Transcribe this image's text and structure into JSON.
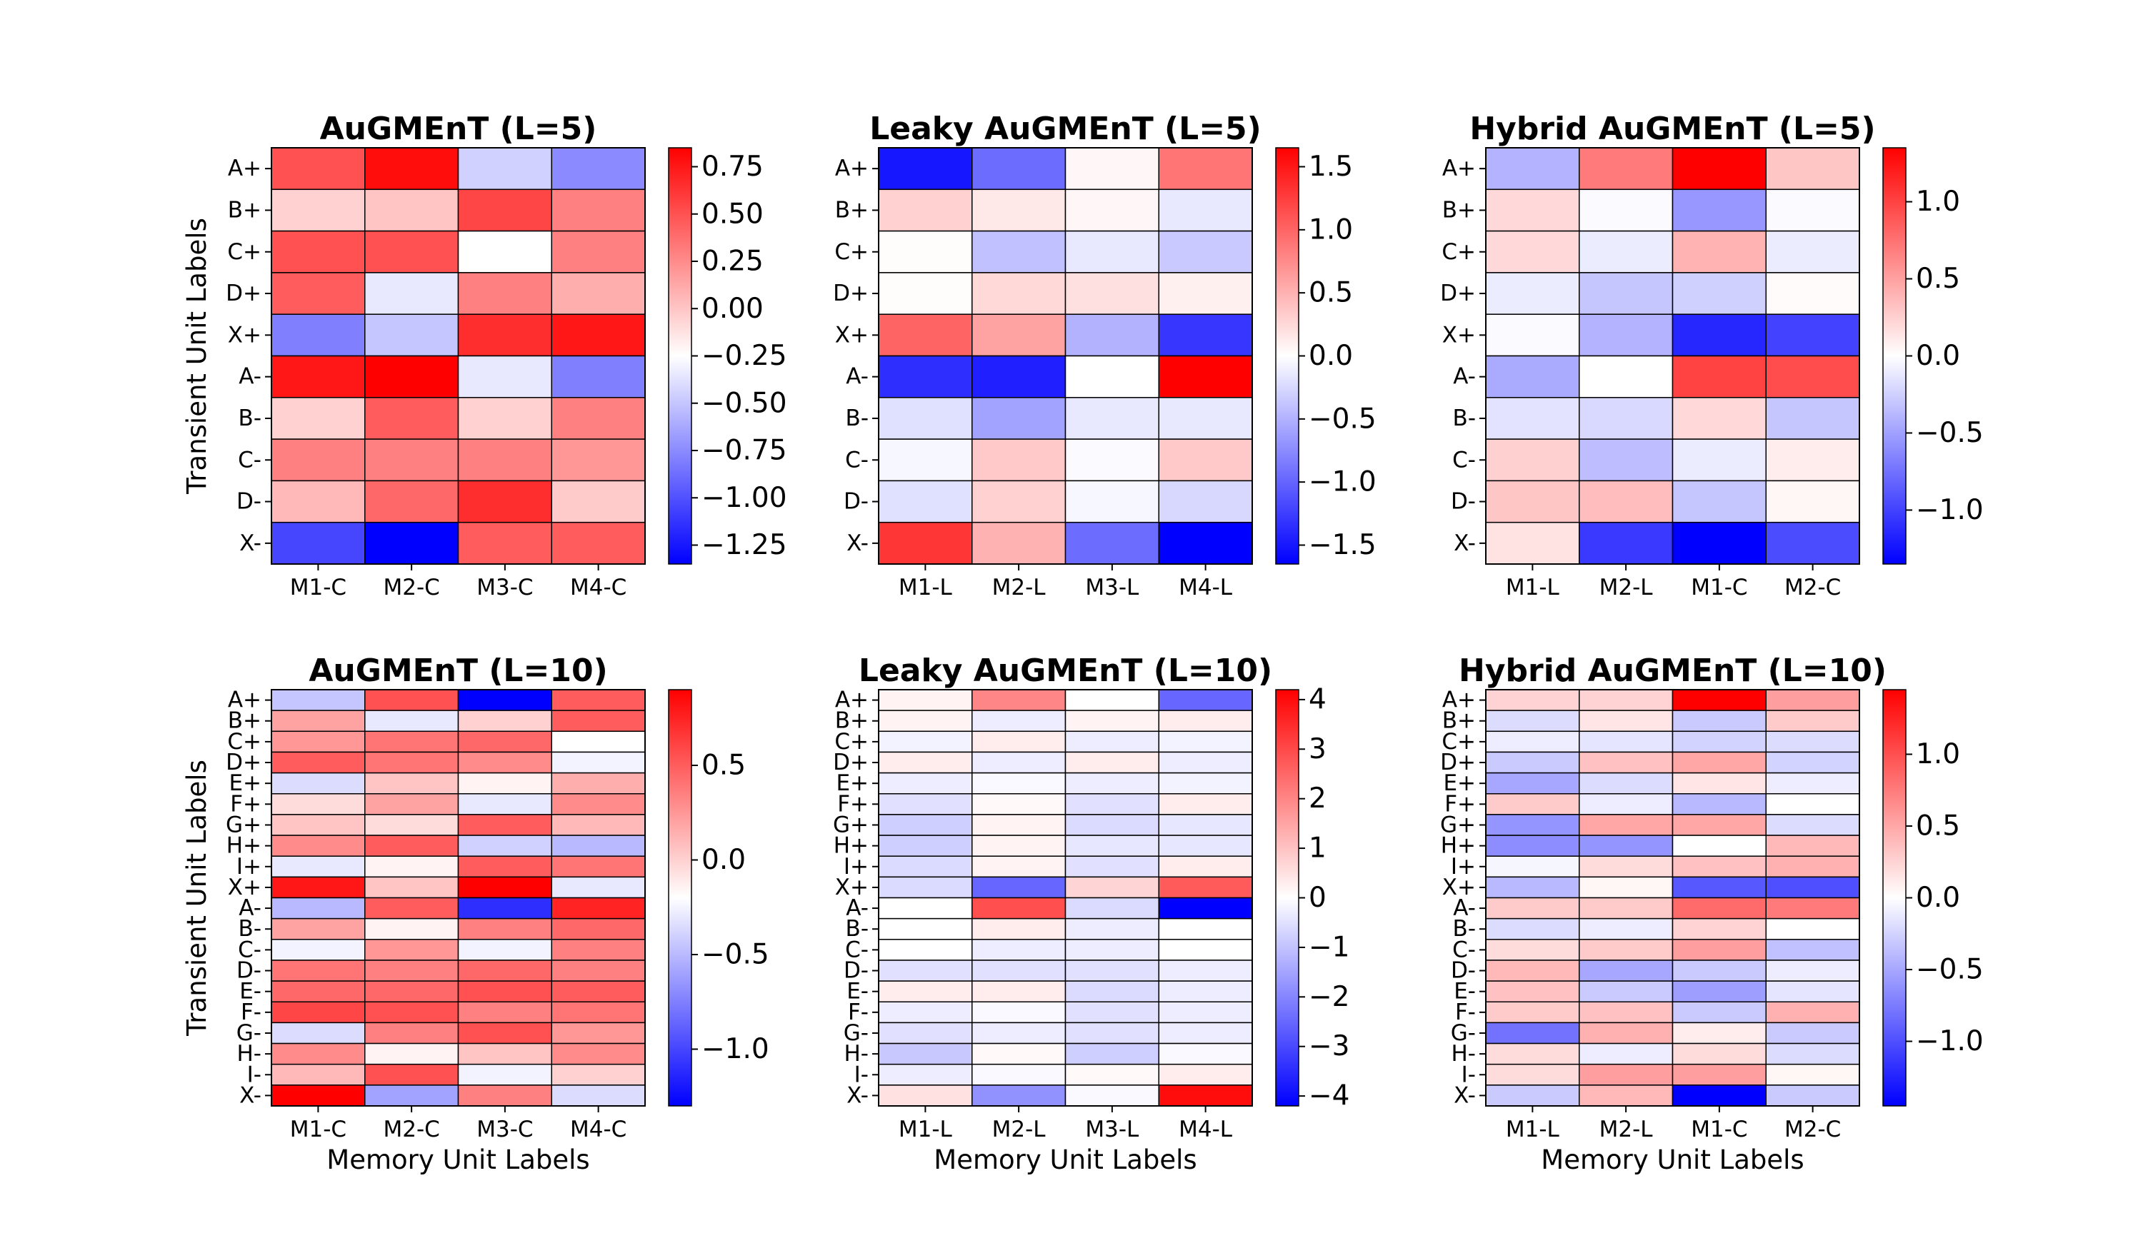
{
  "colors": {
    "low": "#0000ff",
    "mid": "#ffffff",
    "high": "#ff0000",
    "cell_border": "#000000"
  },
  "chart_data": [
    {
      "type": "heatmap",
      "title": "AuGMEnT (L=5)",
      "xlabel": "",
      "ylabel": "Transient Unit Labels",
      "x": [
        "M1-C",
        "M2-C",
        "M3-C",
        "M4-C"
      ],
      "y": [
        "A+",
        "B+",
        "C+",
        "D+",
        "X+",
        "A-",
        "B-",
        "C-",
        "D-",
        "X-"
      ],
      "vmin": -1.35,
      "vmax": 0.85,
      "colorbar_ticks": [
        0.75,
        0.5,
        0.25,
        0.0,
        -0.25,
        -0.5,
        -0.75,
        -1.0,
        -1.25
      ],
      "colorbar_tick_labels": [
        "0.75",
        "0.50",
        "0.25",
        "0.00",
        "−0.25",
        "−0.50",
        "−0.75",
        "−1.00",
        "−1.25"
      ],
      "values": [
        [
          0.5,
          0.8,
          -0.45,
          -0.75
        ],
        [
          -0.05,
          0.0,
          0.55,
          0.3
        ],
        [
          0.5,
          0.5,
          -0.25,
          0.3
        ],
        [
          0.45,
          -0.35,
          0.3,
          0.1
        ],
        [
          -0.8,
          -0.5,
          0.65,
          0.75
        ],
        [
          0.75,
          0.85,
          -0.35,
          -0.8
        ],
        [
          -0.05,
          0.45,
          -0.05,
          0.3
        ],
        [
          0.3,
          0.3,
          0.3,
          0.2
        ],
        [
          0.05,
          0.4,
          0.65,
          -0.02
        ],
        [
          -1.05,
          -1.35,
          0.45,
          0.45
        ]
      ]
    },
    {
      "type": "heatmap",
      "title": "Leaky AuGMEnT (L=5)",
      "xlabel": "",
      "ylabel": "",
      "x": [
        "M1-L",
        "M2-L",
        "M3-L",
        "M4-L"
      ],
      "y": [
        "A+",
        "B+",
        "C+",
        "D+",
        "X+",
        "A-",
        "B-",
        "C-",
        "D-",
        "X-"
      ],
      "vmin": -1.65,
      "vmax": 1.65,
      "colorbar_ticks": [
        1.5,
        1.0,
        0.5,
        0.0,
        -0.5,
        -1.0,
        -1.5
      ],
      "colorbar_tick_labels": [
        "1.5",
        "1.0",
        "0.5",
        "0.0",
        "−0.5",
        "−1.0",
        "−1.5"
      ],
      "values": [
        [
          -1.5,
          -0.95,
          0.05,
          0.9
        ],
        [
          0.3,
          0.15,
          0.05,
          -0.15
        ],
        [
          0.02,
          -0.4,
          -0.15,
          -0.35
        ],
        [
          0.02,
          0.25,
          0.2,
          0.1
        ],
        [
          1.0,
          0.6,
          -0.5,
          -1.3
        ],
        [
          -1.35,
          -1.45,
          0.0,
          1.65
        ],
        [
          -0.2,
          -0.6,
          -0.15,
          -0.15
        ],
        [
          -0.05,
          0.35,
          -0.03,
          0.35
        ],
        [
          -0.2,
          0.3,
          -0.05,
          -0.25
        ],
        [
          1.3,
          0.5,
          -0.95,
          -1.65
        ]
      ]
    },
    {
      "type": "heatmap",
      "title": "Hybrid AuGMEnT (L=5)",
      "xlabel": "",
      "ylabel": "",
      "x": [
        "M1-L",
        "M2-L",
        "M1-C",
        "M2-C"
      ],
      "y": [
        "A+",
        "B+",
        "C+",
        "D+",
        "X+",
        "A-",
        "B-",
        "C-",
        "D-",
        "X-"
      ],
      "vmin": -1.35,
      "vmax": 1.35,
      "colorbar_ticks": [
        1.0,
        0.5,
        0.0,
        -0.5,
        -1.0
      ],
      "colorbar_tick_labels": [
        "1.0",
        "0.5",
        "0.0",
        "−0.5",
        "−1.0"
      ],
      "values": [
        [
          -0.4,
          0.7,
          1.35,
          0.3
        ],
        [
          0.2,
          -0.02,
          -0.55,
          -0.02
        ],
        [
          0.2,
          -0.1,
          0.4,
          -0.1
        ],
        [
          -0.1,
          -0.3,
          -0.25,
          0.02
        ],
        [
          -0.02,
          -0.4,
          -1.15,
          -1.0
        ],
        [
          -0.45,
          0.0,
          1.0,
          0.95
        ],
        [
          -0.15,
          -0.2,
          0.2,
          -0.3
        ],
        [
          0.25,
          -0.35,
          -0.1,
          0.1
        ],
        [
          0.3,
          0.35,
          -0.3,
          0.05
        ],
        [
          0.15,
          -1.05,
          -1.35,
          -0.95
        ]
      ]
    },
    {
      "type": "heatmap",
      "title": "AuGMEnT (L=10)",
      "xlabel": "Memory Unit Labels",
      "ylabel": "Transient Unit Labels",
      "x": [
        "M1-C",
        "M2-C",
        "M3-C",
        "M4-C"
      ],
      "y": [
        "A+",
        "B+",
        "C+",
        "D+",
        "E+",
        "F+",
        "G+",
        "H+",
        "I+",
        "X+",
        "A-",
        "B-",
        "C-",
        "D-",
        "E-",
        "F-",
        "G-",
        "H-",
        "I-",
        "X-"
      ],
      "vmin": -1.3,
      "vmax": 0.9,
      "colorbar_ticks": [
        0.5,
        0.0,
        -0.5,
        -1.0
      ],
      "colorbar_tick_labels": [
        "0.5",
        "0.0",
        "−0.5",
        "−1.0"
      ],
      "values": [
        [
          -0.45,
          0.55,
          -1.3,
          0.5
        ],
        [
          0.2,
          -0.3,
          0.0,
          0.5
        ],
        [
          0.25,
          0.4,
          0.45,
          -0.2
        ],
        [
          0.5,
          0.4,
          0.3,
          -0.25
        ],
        [
          -0.35,
          0.05,
          -0.15,
          0.15
        ],
        [
          -0.05,
          0.2,
          -0.3,
          0.3
        ],
        [
          0.05,
          -0.05,
          0.5,
          0.1
        ],
        [
          0.3,
          0.5,
          -0.4,
          -0.5
        ],
        [
          -0.3,
          -0.15,
          0.5,
          0.4
        ],
        [
          0.8,
          0.05,
          0.9,
          -0.3
        ],
        [
          -0.5,
          0.5,
          -1.1,
          0.75
        ],
        [
          0.2,
          -0.15,
          0.35,
          0.45
        ],
        [
          -0.25,
          0.25,
          -0.25,
          0.35
        ],
        [
          0.4,
          0.35,
          0.45,
          0.35
        ],
        [
          0.45,
          0.45,
          0.55,
          0.5
        ],
        [
          0.6,
          0.55,
          0.35,
          0.4
        ],
        [
          -0.35,
          0.35,
          0.55,
          0.25
        ],
        [
          0.3,
          -0.15,
          0.05,
          0.3
        ],
        [
          0.1,
          0.55,
          -0.25,
          0.0
        ],
        [
          0.9,
          -0.6,
          0.35,
          -0.35
        ]
      ]
    },
    {
      "type": "heatmap",
      "title": "Leaky AuGMEnT (L=10)",
      "xlabel": "Memory Unit Labels",
      "ylabel": "",
      "x": [
        "M1-L",
        "M2-L",
        "M3-L",
        "M4-L"
      ],
      "y": [
        "A+",
        "B+",
        "C+",
        "D+",
        "E+",
        "F+",
        "G+",
        "H+",
        "I+",
        "X+",
        "A-",
        "B-",
        "C-",
        "D-",
        "E-",
        "F-",
        "G-",
        "H-",
        "I-",
        "X-"
      ],
      "vmin": -4.2,
      "vmax": 4.2,
      "colorbar_ticks": [
        4,
        3,
        2,
        1,
        0,
        -1,
        -2,
        -3,
        -4
      ],
      "colorbar_tick_labels": [
        "4",
        "3",
        "2",
        "1",
        "0",
        "−1",
        "−2",
        "−3",
        "−4"
      ],
      "values": [
        [
          0.2,
          2.0,
          0.0,
          -2.5
        ],
        [
          0.2,
          -0.3,
          0.2,
          0.3
        ],
        [
          -0.2,
          0.3,
          -0.3,
          -0.2
        ],
        [
          0.3,
          -0.3,
          0.3,
          -0.3
        ],
        [
          -0.3,
          -0.1,
          -0.3,
          -0.2
        ],
        [
          -0.5,
          0.1,
          -0.5,
          0.3
        ],
        [
          -0.8,
          0.2,
          -0.6,
          -0.4
        ],
        [
          -0.8,
          0.2,
          -0.4,
          -0.4
        ],
        [
          -0.6,
          0.2,
          -0.5,
          0.3
        ],
        [
          -0.6,
          -2.5,
          0.7,
          2.7
        ],
        [
          0.0,
          2.9,
          -0.6,
          -4.2
        ],
        [
          0.0,
          0.3,
          -0.3,
          0.0
        ],
        [
          0.0,
          -0.3,
          -0.3,
          0.0
        ],
        [
          -0.5,
          -0.5,
          -0.5,
          -0.3
        ],
        [
          0.3,
          0.3,
          -0.6,
          -0.3
        ],
        [
          -0.3,
          -0.1,
          -0.5,
          -0.3
        ],
        [
          -0.5,
          -0.3,
          -0.5,
          -0.3
        ],
        [
          -0.9,
          0.1,
          -0.8,
          -0.1
        ],
        [
          -0.3,
          -0.1,
          0.1,
          0.3
        ],
        [
          0.5,
          -1.8,
          -0.1,
          4.0
        ]
      ]
    },
    {
      "type": "heatmap",
      "title": "Hybrid AuGMEnT (L=10)",
      "xlabel": "Memory Unit Labels",
      "ylabel": "",
      "x": [
        "M1-L",
        "M2-L",
        "M1-C",
        "M2-C"
      ],
      "y": [
        "A+",
        "B+",
        "C+",
        "D+",
        "E+",
        "F+",
        "G+",
        "H+",
        "I+",
        "X+",
        "A-",
        "B-",
        "C-",
        "D-",
        "E-",
        "F-",
        "G-",
        "H-",
        "I-",
        "X-"
      ],
      "vmin": -1.45,
      "vmax": 1.45,
      "colorbar_ticks": [
        1.0,
        0.5,
        0.0,
        -0.5,
        -1.0
      ],
      "colorbar_tick_labels": [
        "1.0",
        "0.5",
        "0.0",
        "−0.5",
        "−1.0"
      ],
      "values": [
        [
          0.25,
          0.25,
          1.45,
          0.55
        ],
        [
          -0.2,
          0.15,
          -0.3,
          0.3
        ],
        [
          -0.1,
          -0.15,
          -0.25,
          -0.2
        ],
        [
          -0.3,
          0.35,
          0.5,
          -0.25
        ],
        [
          -0.5,
          -0.2,
          0.15,
          -0.1
        ],
        [
          0.3,
          -0.1,
          -0.4,
          0.0
        ],
        [
          -0.6,
          0.5,
          0.5,
          -0.2
        ],
        [
          -0.65,
          -0.6,
          0.0,
          0.4
        ],
        [
          -0.05,
          0.2,
          0.35,
          0.45
        ],
        [
          -0.4,
          0.05,
          -0.95,
          -1.0
        ],
        [
          0.3,
          0.3,
          0.85,
          0.75
        ],
        [
          -0.2,
          -0.1,
          0.25,
          0.0
        ],
        [
          0.2,
          0.3,
          0.55,
          -0.35
        ],
        [
          0.4,
          -0.5,
          -0.3,
          -0.1
        ],
        [
          0.35,
          -0.3,
          -0.55,
          -0.15
        ],
        [
          0.3,
          0.35,
          -0.3,
          0.45
        ],
        [
          -0.8,
          0.45,
          0.1,
          -0.3
        ],
        [
          0.2,
          -0.1,
          0.2,
          -0.2
        ],
        [
          0.2,
          0.55,
          0.55,
          0.05
        ],
        [
          -0.3,
          0.4,
          -1.45,
          -0.3
        ]
      ]
    }
  ]
}
